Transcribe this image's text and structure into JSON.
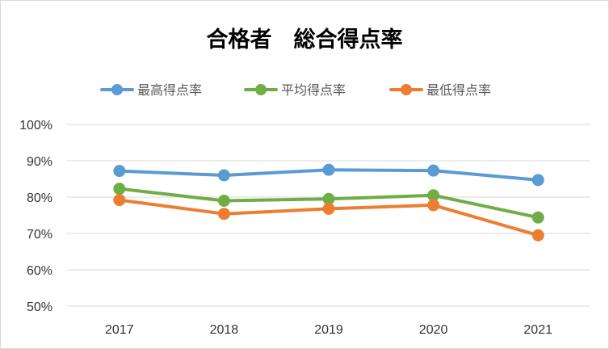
{
  "chart_data": {
    "type": "line",
    "title": "合格者　総合得点率",
    "categories": [
      "2017",
      "2018",
      "2019",
      "2020",
      "2021"
    ],
    "y_tick_labels": [
      "100%",
      "90%",
      "80%",
      "70%",
      "60%",
      "50%"
    ],
    "ylim": [
      50,
      100
    ],
    "y_unit": "%",
    "grid": true,
    "legend_position": "top",
    "series": [
      {
        "name": "最高得点率",
        "color": "#5b9bd5",
        "values": [
          87.2,
          86.0,
          87.5,
          87.3,
          84.7
        ]
      },
      {
        "name": "平均得点率",
        "color": "#70ad47",
        "values": [
          82.3,
          79.0,
          79.5,
          80.5,
          74.4
        ]
      },
      {
        "name": "最低得点率",
        "color": "#ed7d31",
        "values": [
          79.2,
          75.4,
          76.8,
          77.8,
          69.5
        ]
      }
    ]
  }
}
